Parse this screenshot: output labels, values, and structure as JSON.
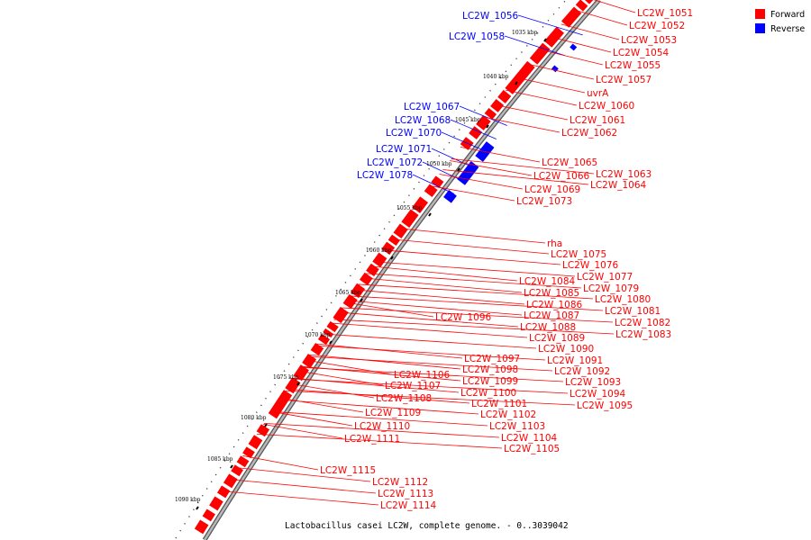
{
  "legend": [
    {
      "label": "Forward",
      "color": "#ff0000"
    },
    {
      "label": "Reverse",
      "color": "#0000ff"
    }
  ],
  "caption": "Lactobacillus casei LC2W, complete genome. - 0..3039042",
  "colors": {
    "forward": "#ff0000",
    "reverse": "#0000ff",
    "backbone": "#888888"
  },
  "scale_ticks": [
    "1035 kbp",
    "1040 kbp",
    "1045 kbp",
    "1050 kbp",
    "1055 kbp",
    "1060 kbp",
    "1065 kbp",
    "1070 kbp",
    "1075 kbp",
    "1080 kbp",
    "1085 kbp",
    "1090 kbp"
  ],
  "forward_labels": [
    "LC2W_1051",
    "LC2W_1052",
    "LC2W_1053",
    "LC2W_1054",
    "LC2W_1055",
    "LC2W_1057",
    "uvrA",
    "LC2W_1060",
    "LC2W_1061",
    "LC2W_1062",
    "LC2W_1065",
    "LC2W_1063",
    "LC2W_1066",
    "LC2W_1064",
    "LC2W_1069",
    "LC2W_1073",
    "rha",
    "LC2W_1075",
    "LC2W_1076",
    "LC2W_1077",
    "LC2W_1084",
    "LC2W_1079",
    "LC2W_1085",
    "LC2W_1080",
    "LC2W_1086",
    "LC2W_1081",
    "LC2W_1087",
    "LC2W_1096",
    "LC2W_1082",
    "LC2W_1088",
    "LC2W_1083",
    "LC2W_1089",
    "LC2W_1090",
    "LC2W_1097",
    "LC2W_1091",
    "LC2W_1098",
    "LC2W_1092",
    "LC2W_1106",
    "LC2W_1099",
    "LC2W_1093",
    "LC2W_1107",
    "LC2W_1100",
    "LC2W_1094",
    "LC2W_1108",
    "LC2W_1101",
    "LC2W_1095",
    "LC2W_1109",
    "LC2W_1102",
    "LC2W_1110",
    "LC2W_1103",
    "LC2W_1111",
    "LC2W_1104",
    "LC2W_1105",
    "LC2W_1115",
    "LC2W_1112",
    "LC2W_1113",
    "LC2W_1114"
  ],
  "reverse_labels": [
    "LC2W_1056",
    "LC2W_1058",
    "LC2W_1067",
    "LC2W_1068",
    "LC2W_1070",
    "LC2W_1071",
    "LC2W_1072",
    "LC2W_1078"
  ]
}
